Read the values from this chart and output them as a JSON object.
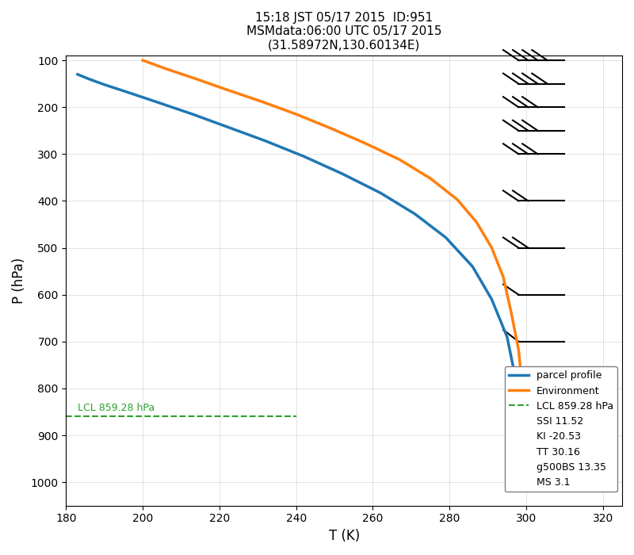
{
  "title": "15:18 JST 05/17 2015  ID:951\nMSMdata:06:00 UTC 05/17 2015\n(31.58972N,130.60134E)",
  "xlabel": "T (K)",
  "ylabel": "P (hPa)",
  "xlim": [
    180,
    325
  ],
  "ylim_top": 90,
  "ylim_bottom": 1050,
  "yticks": [
    100,
    200,
    300,
    400,
    500,
    600,
    700,
    800,
    900,
    1000
  ],
  "xticks": [
    180,
    200,
    220,
    240,
    260,
    280,
    300,
    320
  ],
  "lcl_pressure": 859.28,
  "lcl_label": "LCL 859.28 hPa",
  "parcel_color": "#1f77b4",
  "env_color": "#ff7f0e",
  "lcl_color": "#2ca02c",
  "parcel_T": [
    183,
    186,
    190,
    196,
    204,
    213,
    222,
    232,
    242,
    252,
    262,
    271,
    279,
    286,
    291,
    295,
    297,
    299,
    300
  ],
  "parcel_P": [
    130,
    140,
    152,
    168,
    190,
    215,
    242,
    272,
    305,
    342,
    383,
    428,
    478,
    540,
    610,
    690,
    770,
    850,
    920
  ],
  "env_T": [
    200,
    206,
    214,
    222,
    231,
    240,
    249,
    258,
    267,
    275,
    282,
    287,
    291,
    294,
    296,
    298,
    299,
    300,
    301
  ],
  "env_P": [
    100,
    118,
    140,
    163,
    188,
    215,
    245,
    277,
    312,
    352,
    397,
    445,
    500,
    562,
    635,
    718,
    800,
    880,
    960
  ],
  "barb_levels": [
    100,
    150,
    200,
    250,
    300,
    400,
    500,
    600,
    700,
    800,
    925
  ],
  "barb_counts": [
    4,
    4,
    3,
    3,
    3,
    2,
    2,
    1,
    0,
    -1,
    -2
  ],
  "barb_x_data": 310,
  "legend_texts": [
    "parcel profile",
    "Environment",
    "LCL 859.28 hPa",
    "SSI 11.52",
    "KI -20.53",
    "TT 30.16",
    "g500BS 13.35",
    "MS 3.1"
  ]
}
